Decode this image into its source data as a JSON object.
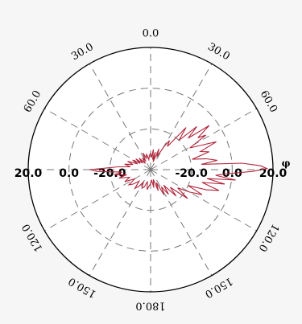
{
  "chart_data": {
    "type": "polar",
    "angle_labels": [
      {
        "text": "0.0",
        "angle": 0
      },
      {
        "text": "30.0",
        "angle": 30
      },
      {
        "text": "60.0",
        "angle": 60
      },
      {
        "text": "120.0",
        "angle": 120
      },
      {
        "text": "150.0",
        "angle": 150
      },
      {
        "text": "180.0",
        "angle": 180
      },
      {
        "text": "150.0",
        "angle": 210
      },
      {
        "text": "120.0",
        "angle": 240
      },
      {
        "text": "60.0",
        "angle": 300
      },
      {
        "text": "30.0",
        "angle": 330
      }
    ],
    "radial_labels_left": [
      "20.0",
      "0.0",
      "-20.0"
    ],
    "radial_labels_right": [
      "-20.0",
      "0.0",
      "20.0"
    ],
    "radial_axis_symbol": "φ",
    "r_range": [
      -40,
      20
    ],
    "rings": [
      -20,
      0,
      20
    ],
    "series": [
      {
        "color": "#b0243a",
        "points": [
          [
            0,
            -32
          ],
          [
            4,
            -34
          ],
          [
            8,
            -30
          ],
          [
            12,
            -35
          ],
          [
            15,
            -31
          ],
          [
            18,
            -36
          ],
          [
            22,
            -29
          ],
          [
            26,
            -33
          ],
          [
            30,
            -27
          ],
          [
            33,
            -23
          ],
          [
            36,
            -26
          ],
          [
            40,
            -13
          ],
          [
            44,
            -20
          ],
          [
            47,
            -9
          ],
          [
            50,
            -16
          ],
          [
            53,
            -4
          ],
          [
            56,
            -12
          ],
          [
            58,
            -8
          ],
          [
            61,
            -18
          ],
          [
            64,
            -13
          ],
          [
            67,
            -5
          ],
          [
            70,
            -14
          ],
          [
            73,
            -10
          ],
          [
            76,
            -19
          ],
          [
            79,
            -12
          ],
          [
            82,
            -7
          ],
          [
            84,
            -15
          ],
          [
            86,
            5
          ],
          [
            88,
            14
          ],
          [
            89.5,
            17
          ],
          [
            91,
            10
          ],
          [
            93,
            -2
          ],
          [
            95,
            -8
          ],
          [
            97,
            2
          ],
          [
            99,
            -12
          ],
          [
            101,
            -3
          ],
          [
            104,
            -14
          ],
          [
            107,
            -5
          ],
          [
            110,
            -11
          ],
          [
            113,
            -20
          ],
          [
            116,
            -12
          ],
          [
            120,
            -18
          ],
          [
            124,
            -24
          ],
          [
            128,
            -17
          ],
          [
            132,
            -27
          ],
          [
            136,
            -22
          ],
          [
            140,
            -30
          ],
          [
            144,
            -25
          ],
          [
            148,
            -30
          ],
          [
            152,
            -26
          ],
          [
            156,
            -33
          ],
          [
            160,
            -29
          ],
          [
            165,
            -35
          ],
          [
            170,
            -31
          ],
          [
            175,
            -35
          ],
          [
            180,
            -33
          ],
          [
            185,
            -32
          ],
          [
            190,
            -30
          ],
          [
            195,
            -34
          ],
          [
            200,
            -31
          ],
          [
            205,
            -30
          ],
          [
            210,
            -33
          ],
          [
            215,
            -30
          ],
          [
            220,
            -28
          ],
          [
            225,
            -32
          ],
          [
            230,
            -29
          ],
          [
            235,
            -27
          ],
          [
            240,
            -31
          ],
          [
            245,
            -26
          ],
          [
            250,
            -29
          ],
          [
            255,
            -24
          ],
          [
            258,
            -28
          ],
          [
            262,
            -22
          ],
          [
            265,
            -26
          ],
          [
            268,
            -14
          ],
          [
            270,
            -10
          ],
          [
            272,
            -18
          ],
          [
            275,
            -24
          ],
          [
            278,
            -30
          ],
          [
            282,
            -27
          ],
          [
            286,
            -31
          ],
          [
            290,
            -28
          ],
          [
            294,
            -33
          ],
          [
            298,
            -30
          ],
          [
            302,
            -34
          ],
          [
            306,
            -31
          ],
          [
            310,
            -35
          ],
          [
            315,
            -32
          ],
          [
            320,
            -36
          ],
          [
            325,
            -33
          ],
          [
            330,
            -35
          ],
          [
            335,
            -31
          ],
          [
            340,
            -34
          ],
          [
            345,
            -32
          ],
          [
            350,
            -35
          ],
          [
            355,
            -33
          ]
        ]
      }
    ],
    "grid": true
  }
}
